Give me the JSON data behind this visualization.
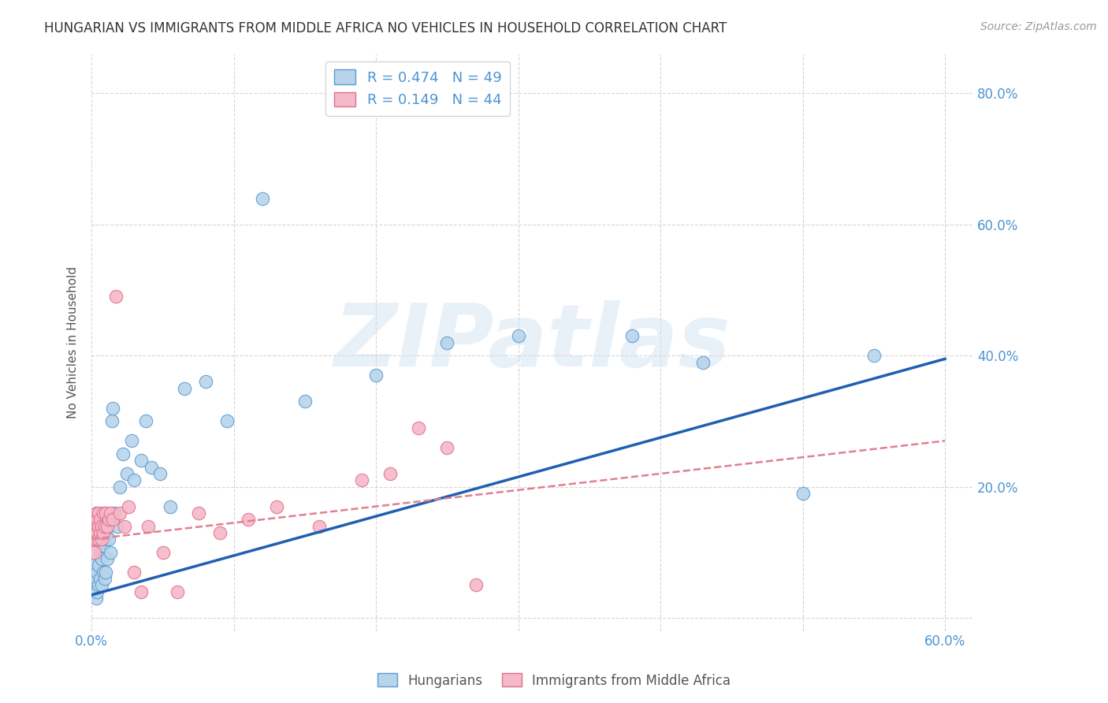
{
  "title": "HUNGARIAN VS IMMIGRANTS FROM MIDDLE AFRICA NO VEHICLES IN HOUSEHOLD CORRELATION CHART",
  "source": "Source: ZipAtlas.com",
  "ylabel": "No Vehicles in Household",
  "xlim": [
    0.0,
    0.62
  ],
  "ylim": [
    -0.02,
    0.86
  ],
  "series1_label": "Hungarians",
  "series2_label": "Immigrants from Middle Africa",
  "series1_color": "#b8d4ea",
  "series2_color": "#f5b8c8",
  "series1_edge": "#5b9bd5",
  "series2_edge": "#e07090",
  "line1_color": "#2060b0",
  "line2_color": "#e08090",
  "watermark": "ZIPatlas",
  "axis_color": "#4d94d4",
  "grid_color": "#cccccc",
  "background_color": "#ffffff",
  "title_color": "#333333",
  "R1": 0.474,
  "N1": 49,
  "R2": 0.149,
  "N2": 44,
  "blue_dots_x": [
    0.001,
    0.002,
    0.002,
    0.003,
    0.003,
    0.004,
    0.004,
    0.005,
    0.005,
    0.006,
    0.006,
    0.007,
    0.007,
    0.008,
    0.008,
    0.009,
    0.009,
    0.01,
    0.01,
    0.011,
    0.011,
    0.012,
    0.013,
    0.014,
    0.015,
    0.016,
    0.018,
    0.02,
    0.022,
    0.025,
    0.028,
    0.03,
    0.035,
    0.038,
    0.042,
    0.048,
    0.055,
    0.065,
    0.08,
    0.095,
    0.12,
    0.15,
    0.2,
    0.25,
    0.3,
    0.38,
    0.43,
    0.5,
    0.55
  ],
  "blue_dots_y": [
    0.05,
    0.08,
    0.04,
    0.06,
    0.03,
    0.07,
    0.04,
    0.08,
    0.05,
    0.1,
    0.06,
    0.09,
    0.05,
    0.11,
    0.07,
    0.12,
    0.06,
    0.13,
    0.07,
    0.14,
    0.09,
    0.12,
    0.1,
    0.3,
    0.32,
    0.16,
    0.14,
    0.2,
    0.25,
    0.22,
    0.27,
    0.21,
    0.24,
    0.3,
    0.23,
    0.22,
    0.17,
    0.35,
    0.36,
    0.3,
    0.64,
    0.33,
    0.37,
    0.42,
    0.43,
    0.43,
    0.39,
    0.19,
    0.4
  ],
  "pink_dots_x": [
    0.001,
    0.001,
    0.002,
    0.002,
    0.002,
    0.003,
    0.003,
    0.003,
    0.004,
    0.004,
    0.005,
    0.005,
    0.005,
    0.006,
    0.006,
    0.007,
    0.007,
    0.008,
    0.008,
    0.009,
    0.01,
    0.011,
    0.012,
    0.013,
    0.015,
    0.017,
    0.02,
    0.023,
    0.026,
    0.03,
    0.035,
    0.04,
    0.05,
    0.06,
    0.075,
    0.09,
    0.11,
    0.13,
    0.16,
    0.19,
    0.21,
    0.23,
    0.25,
    0.27
  ],
  "pink_dots_y": [
    0.12,
    0.14,
    0.13,
    0.15,
    0.1,
    0.12,
    0.14,
    0.16,
    0.13,
    0.15,
    0.14,
    0.12,
    0.16,
    0.13,
    0.15,
    0.14,
    0.12,
    0.16,
    0.13,
    0.14,
    0.16,
    0.14,
    0.15,
    0.16,
    0.15,
    0.49,
    0.16,
    0.14,
    0.17,
    0.07,
    0.04,
    0.14,
    0.1,
    0.04,
    0.16,
    0.13,
    0.15,
    0.17,
    0.14,
    0.21,
    0.22,
    0.29,
    0.26,
    0.05
  ],
  "line1_x0": 0.0,
  "line1_y0": 0.035,
  "line1_x1": 0.6,
  "line1_y1": 0.395,
  "line2_x0": 0.0,
  "line2_y0": 0.12,
  "line2_x1": 0.6,
  "line2_y1": 0.27
}
